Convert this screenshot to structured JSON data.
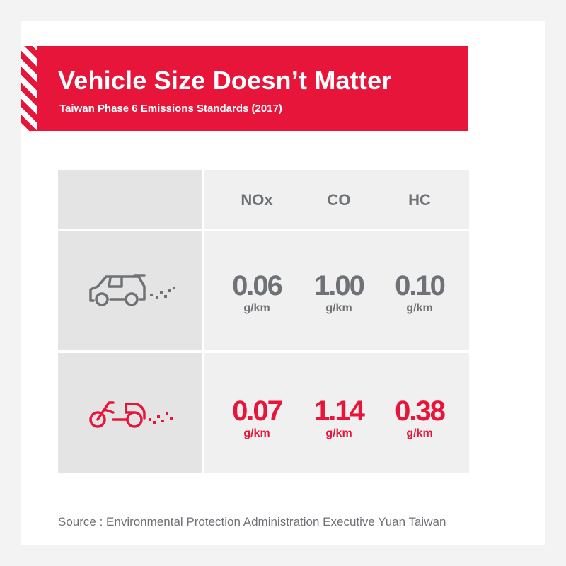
{
  "chart_data": {
    "type": "table",
    "title": "Vehicle Size Doesn’t Matter",
    "subtitle": "Taiwan Phase 6 Emissions Standards (2017)",
    "columns": [
      "NOx",
      "CO",
      "HC"
    ],
    "rows": [
      {
        "icon": "car-icon",
        "values": [
          "0.06",
          "1.00",
          "0.10"
        ],
        "unit": "g/km",
        "color": "#6e7175"
      },
      {
        "icon": "scooter-icon",
        "values": [
          "0.07",
          "1.14",
          "0.38"
        ],
        "unit": "g/km",
        "color": "#e8153a"
      }
    ],
    "source": "Source : Environmental Protection Administration Executive Yuan Taiwan"
  },
  "colors": {
    "accent": "#e8153a",
    "grey": "#6e7175"
  }
}
